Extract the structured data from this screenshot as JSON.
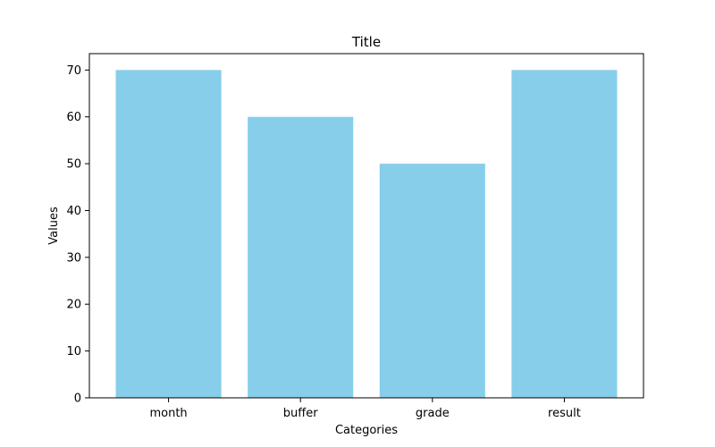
{
  "chart_data": {
    "type": "bar",
    "title": "Title",
    "xlabel": "Categories",
    "ylabel": "Values",
    "categories": [
      "month",
      "buffer",
      "grade",
      "result"
    ],
    "values": [
      70,
      60,
      50,
      70
    ],
    "ylim": [
      0,
      73.5
    ],
    "yticks": [
      0,
      10,
      20,
      30,
      40,
      50,
      60,
      70
    ],
    "grid": false,
    "legend": "none",
    "bar_color": "#87CEEB"
  }
}
